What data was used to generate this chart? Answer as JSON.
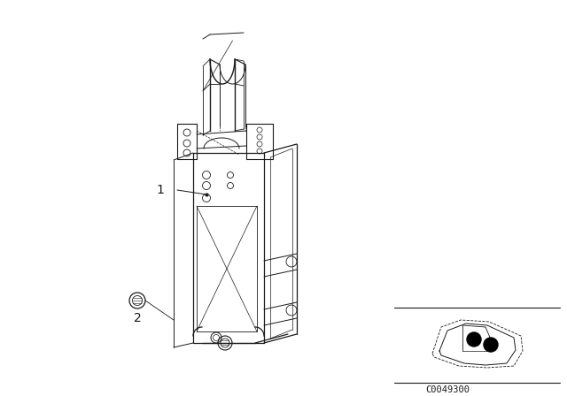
{
  "bg_color": "#ffffff",
  "line_color": "#1a1a1a",
  "fig_width": 6.4,
  "fig_height": 4.48,
  "dpi": 100,
  "part_number": "C0049300"
}
